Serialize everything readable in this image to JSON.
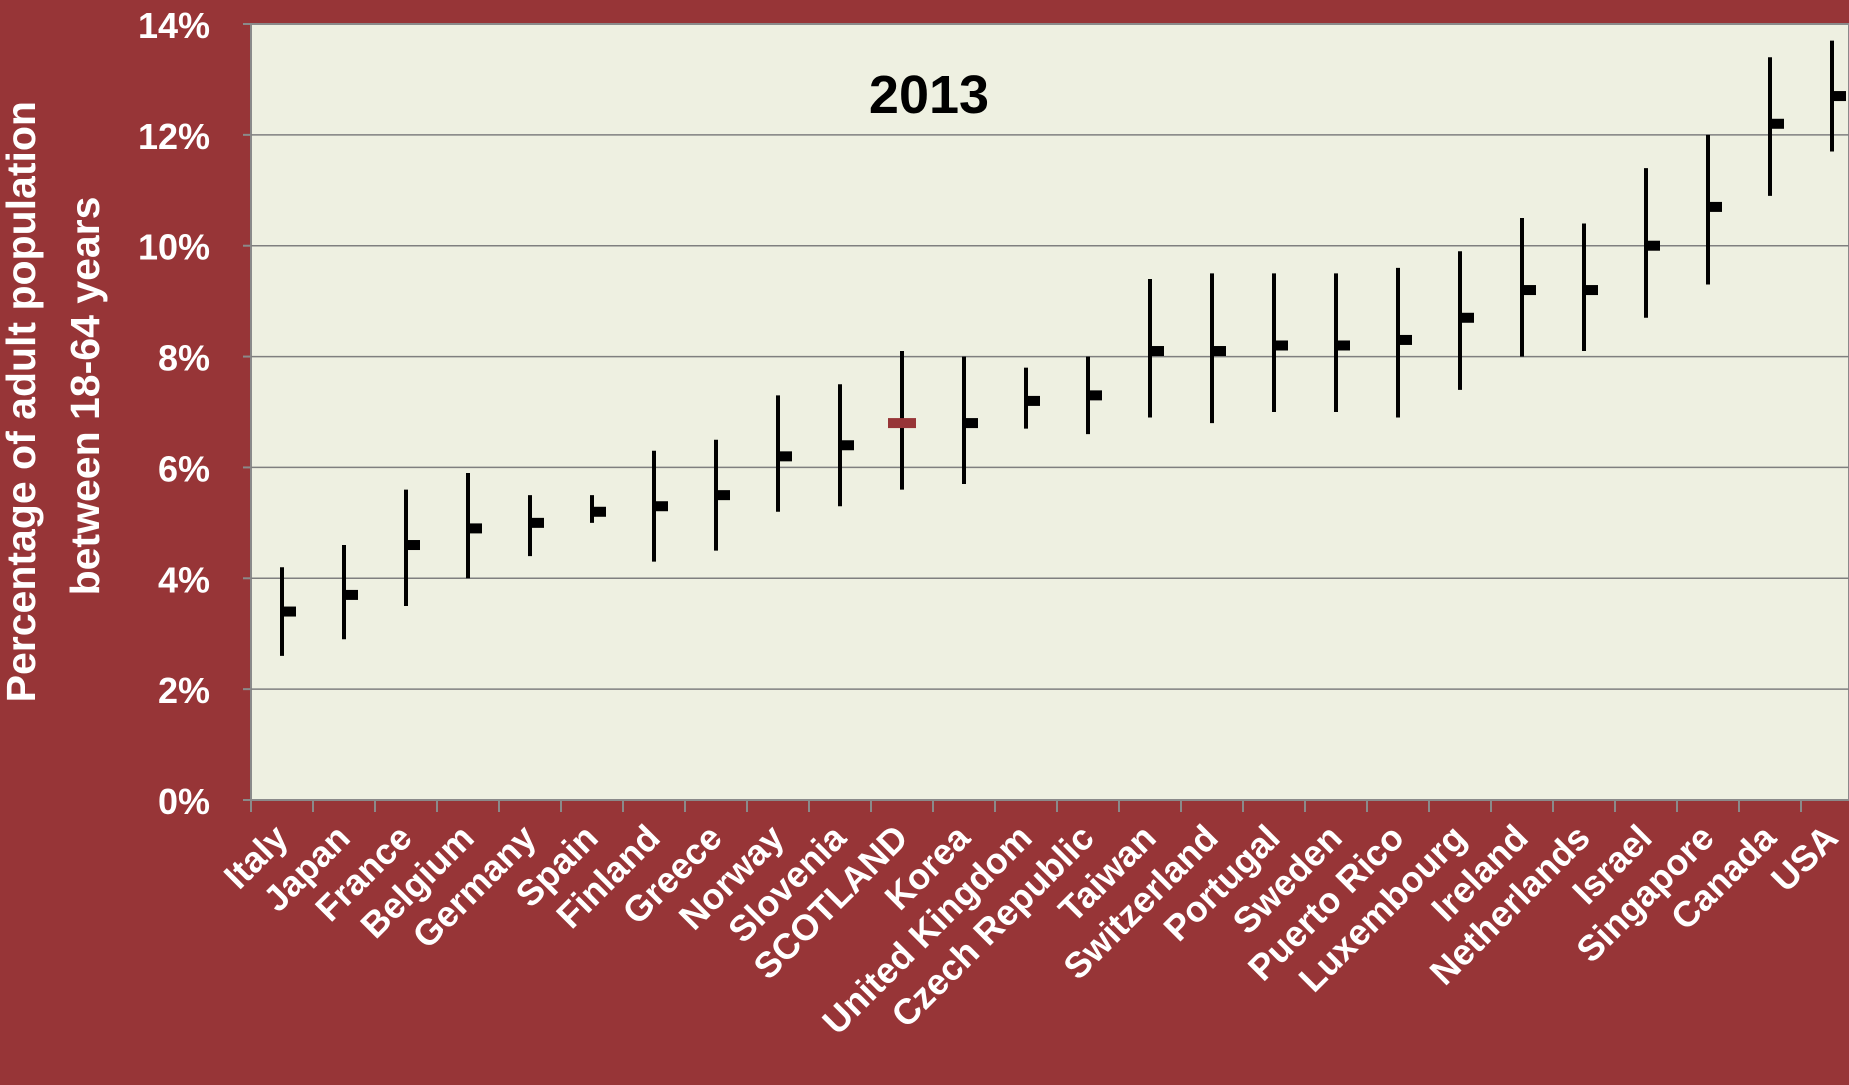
{
  "colors": {
    "background": "#973537",
    "plot_area": "#EEF0E1",
    "gridline": "#7F7F7F",
    "axis_text": "#FFFFFF",
    "marker": "#000000",
    "highlight_marker": "#973537"
  },
  "chart_data": {
    "type": "error-bar",
    "title": "2013",
    "ylabel": "Percentage of adult population between 18-64 years",
    "ylabel_lines": [
      "Percentage of adult population",
      "between 18-64 years"
    ],
    "xlabel": "",
    "ylim": [
      0,
      14
    ],
    "y_ticks": [
      0,
      2,
      4,
      6,
      8,
      10,
      12,
      14
    ],
    "y_tick_labels": [
      "0%",
      "2%",
      "4%",
      "6%",
      "8%",
      "10%",
      "12%",
      "14%"
    ],
    "grid": true,
    "highlight": "SCOTLAND",
    "categories": [
      "Italy",
      "Japan",
      "France",
      "Belgium",
      "Germany",
      "Spain",
      "Finland",
      "Greece",
      "Norway",
      "Slovenia",
      "SCOTLAND",
      "Korea",
      "United Kingdom",
      "Czech Republic",
      "Taiwan",
      "Switzerland",
      "Portugal",
      "Sweden",
      "Puerto Rico",
      "Luxembourg",
      "Ireland",
      "Netherlands",
      "Israel",
      "Singapore",
      "Canada",
      "USA"
    ],
    "values": [
      3.4,
      3.7,
      4.6,
      4.9,
      5.0,
      5.2,
      5.3,
      5.5,
      6.2,
      6.4,
      6.8,
      6.8,
      7.2,
      7.3,
      8.1,
      8.1,
      8.2,
      8.2,
      8.3,
      8.7,
      9.2,
      9.2,
      10.0,
      10.7,
      12.2,
      12.7
    ],
    "lower": [
      2.6,
      2.9,
      3.5,
      4.0,
      4.4,
      5.0,
      4.3,
      4.5,
      5.2,
      5.3,
      5.6,
      5.7,
      6.7,
      6.6,
      6.9,
      6.8,
      7.0,
      7.0,
      6.9,
      7.4,
      8.0,
      8.1,
      8.7,
      9.3,
      10.9,
      11.7
    ],
    "upper": [
      4.2,
      4.6,
      5.6,
      5.9,
      5.5,
      5.5,
      6.3,
      6.5,
      7.3,
      7.5,
      8.1,
      8.0,
      7.8,
      8.0,
      9.4,
      9.5,
      9.5,
      9.5,
      9.6,
      9.9,
      10.5,
      10.4,
      11.4,
      12.0,
      13.4,
      13.7
    ]
  }
}
